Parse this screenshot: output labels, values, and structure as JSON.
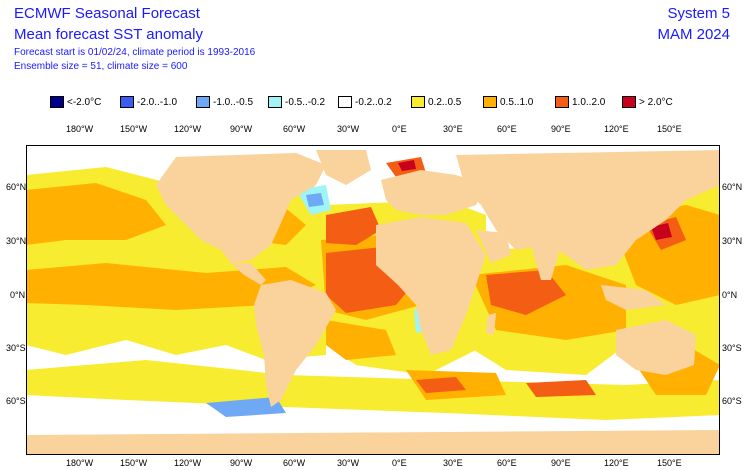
{
  "header": {
    "title": "ECMWF Seasonal Forecast",
    "subtitle": "Mean forecast SST anomaly",
    "forecast_info": "Forecast start is 01/02/24, climate period is 1993-2016",
    "ensemble_info": "Ensemble size = 51, climate size = 600",
    "system": "System 5",
    "period": "MAM 2024"
  },
  "legend": [
    {
      "label": "<-2.0°C",
      "color": "#00008b"
    },
    {
      "label": "-2.0..-1.0",
      "color": "#3a5ff0"
    },
    {
      "label": "-1.0..-0.5",
      "color": "#6fa8f5"
    },
    {
      "label": "-0.5..-0.2",
      "color": "#9ff5f5"
    },
    {
      "label": "-0.2..0.2",
      "color": "#ffffff"
    },
    {
      "label": "0.2..0.5",
      "color": "#f7ec2f"
    },
    {
      "label": "0.5..1.0",
      "color": "#ffb000"
    },
    {
      "label": "1.0..2.0",
      "color": "#f45d14"
    },
    {
      "label": "> 2.0°C",
      "color": "#c8001e"
    }
  ],
  "axes": {
    "lon_labels": [
      "180°W",
      "150°W",
      "120°W",
      "90°W",
      "60°W",
      "30°W",
      "0°E",
      "30°E",
      "60°E",
      "90°E",
      "120°E",
      "150°E"
    ],
    "lat_labels": [
      "60°N",
      "30°N",
      "0°N",
      "30°S",
      "60°S"
    ]
  },
  "map_colors": {
    "land": "#f9d39b",
    "ocean_neutral": "#ffffff",
    "ocean_frame": "#000000"
  }
}
